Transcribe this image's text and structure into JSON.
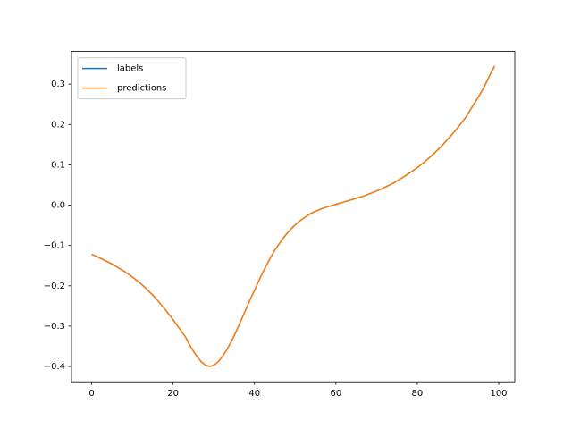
{
  "chart_data": {
    "type": "line",
    "x": [
      0,
      1,
      2,
      3,
      4,
      5,
      6,
      7,
      8,
      9,
      10,
      11,
      12,
      13,
      14,
      15,
      16,
      17,
      18,
      19,
      20,
      21,
      22,
      23,
      24,
      25,
      26,
      27,
      28,
      29,
      30,
      31,
      32,
      33,
      34,
      35,
      36,
      37,
      38,
      39,
      40,
      41,
      42,
      43,
      44,
      45,
      46,
      47,
      48,
      49,
      50,
      51,
      52,
      53,
      54,
      55,
      56,
      57,
      58,
      59,
      60,
      61,
      62,
      63,
      64,
      65,
      66,
      67,
      68,
      69,
      70,
      71,
      72,
      73,
      74,
      75,
      76,
      77,
      78,
      79,
      80,
      81,
      82,
      83,
      84,
      85,
      86,
      87,
      88,
      89,
      90,
      91,
      92,
      93,
      94,
      95,
      96,
      97,
      98,
      99
    ],
    "series": [
      {
        "name": "labels",
        "color": "#1f77b4",
        "values": [
          -0.122,
          -0.126,
          -0.131,
          -0.136,
          -0.141,
          -0.146,
          -0.152,
          -0.158,
          -0.164,
          -0.171,
          -0.178,
          -0.186,
          -0.194,
          -0.203,
          -0.213,
          -0.223,
          -0.234,
          -0.246,
          -0.258,
          -0.271,
          -0.284,
          -0.298,
          -0.312,
          -0.326,
          -0.345,
          -0.362,
          -0.377,
          -0.389,
          -0.397,
          -0.4,
          -0.397,
          -0.389,
          -0.377,
          -0.362,
          -0.344,
          -0.324,
          -0.302,
          -0.279,
          -0.256,
          -0.233,
          -0.211,
          -0.189,
          -0.168,
          -0.148,
          -0.129,
          -0.112,
          -0.097,
          -0.083,
          -0.07,
          -0.059,
          -0.049,
          -0.04,
          -0.033,
          -0.026,
          -0.02,
          -0.015,
          -0.011,
          -0.007,
          -0.004,
          -0.001,
          0.002,
          0.005,
          0.008,
          0.011,
          0.014,
          0.017,
          0.02,
          0.023,
          0.027,
          0.031,
          0.035,
          0.039,
          0.044,
          0.049,
          0.054,
          0.06,
          0.066,
          0.072,
          0.079,
          0.086,
          0.093,
          0.101,
          0.109,
          0.118,
          0.127,
          0.137,
          0.147,
          0.158,
          0.169,
          0.181,
          0.193,
          0.206,
          0.219,
          0.236,
          0.252,
          0.268,
          0.285,
          0.305,
          0.326,
          0.345
        ]
      },
      {
        "name": "predictions",
        "color": "#ff7f0e",
        "values": [
          -0.122,
          -0.126,
          -0.131,
          -0.136,
          -0.141,
          -0.146,
          -0.152,
          -0.158,
          -0.164,
          -0.171,
          -0.178,
          -0.186,
          -0.194,
          -0.203,
          -0.213,
          -0.223,
          -0.234,
          -0.246,
          -0.258,
          -0.271,
          -0.284,
          -0.298,
          -0.312,
          -0.326,
          -0.345,
          -0.362,
          -0.377,
          -0.389,
          -0.397,
          -0.4,
          -0.397,
          -0.389,
          -0.377,
          -0.362,
          -0.344,
          -0.324,
          -0.302,
          -0.279,
          -0.256,
          -0.233,
          -0.211,
          -0.189,
          -0.168,
          -0.148,
          -0.129,
          -0.112,
          -0.097,
          -0.083,
          -0.07,
          -0.059,
          -0.049,
          -0.04,
          -0.033,
          -0.026,
          -0.02,
          -0.015,
          -0.011,
          -0.007,
          -0.004,
          -0.001,
          0.002,
          0.005,
          0.008,
          0.011,
          0.014,
          0.017,
          0.02,
          0.023,
          0.027,
          0.031,
          0.035,
          0.039,
          0.044,
          0.049,
          0.054,
          0.06,
          0.066,
          0.072,
          0.079,
          0.086,
          0.093,
          0.101,
          0.109,
          0.118,
          0.127,
          0.137,
          0.147,
          0.158,
          0.169,
          0.181,
          0.193,
          0.206,
          0.219,
          0.236,
          0.252,
          0.268,
          0.285,
          0.305,
          0.326,
          0.345
        ]
      }
    ],
    "xlim": [
      -4.95,
      103.95
    ],
    "xticks": [
      0,
      20,
      40,
      60,
      80,
      100
    ],
    "ylim": [
      -0.438,
      0.381
    ],
    "yticks": [
      {
        "value": -0.4,
        "label": "−0.4"
      },
      {
        "value": -0.3,
        "label": "−0.3"
      },
      {
        "value": -0.2,
        "label": "−0.2"
      },
      {
        "value": -0.1,
        "label": "−0.1"
      },
      {
        "value": 0,
        "label": "0.0"
      },
      0.1,
      0.2,
      0.3
    ],
    "legend": "upper left"
  }
}
